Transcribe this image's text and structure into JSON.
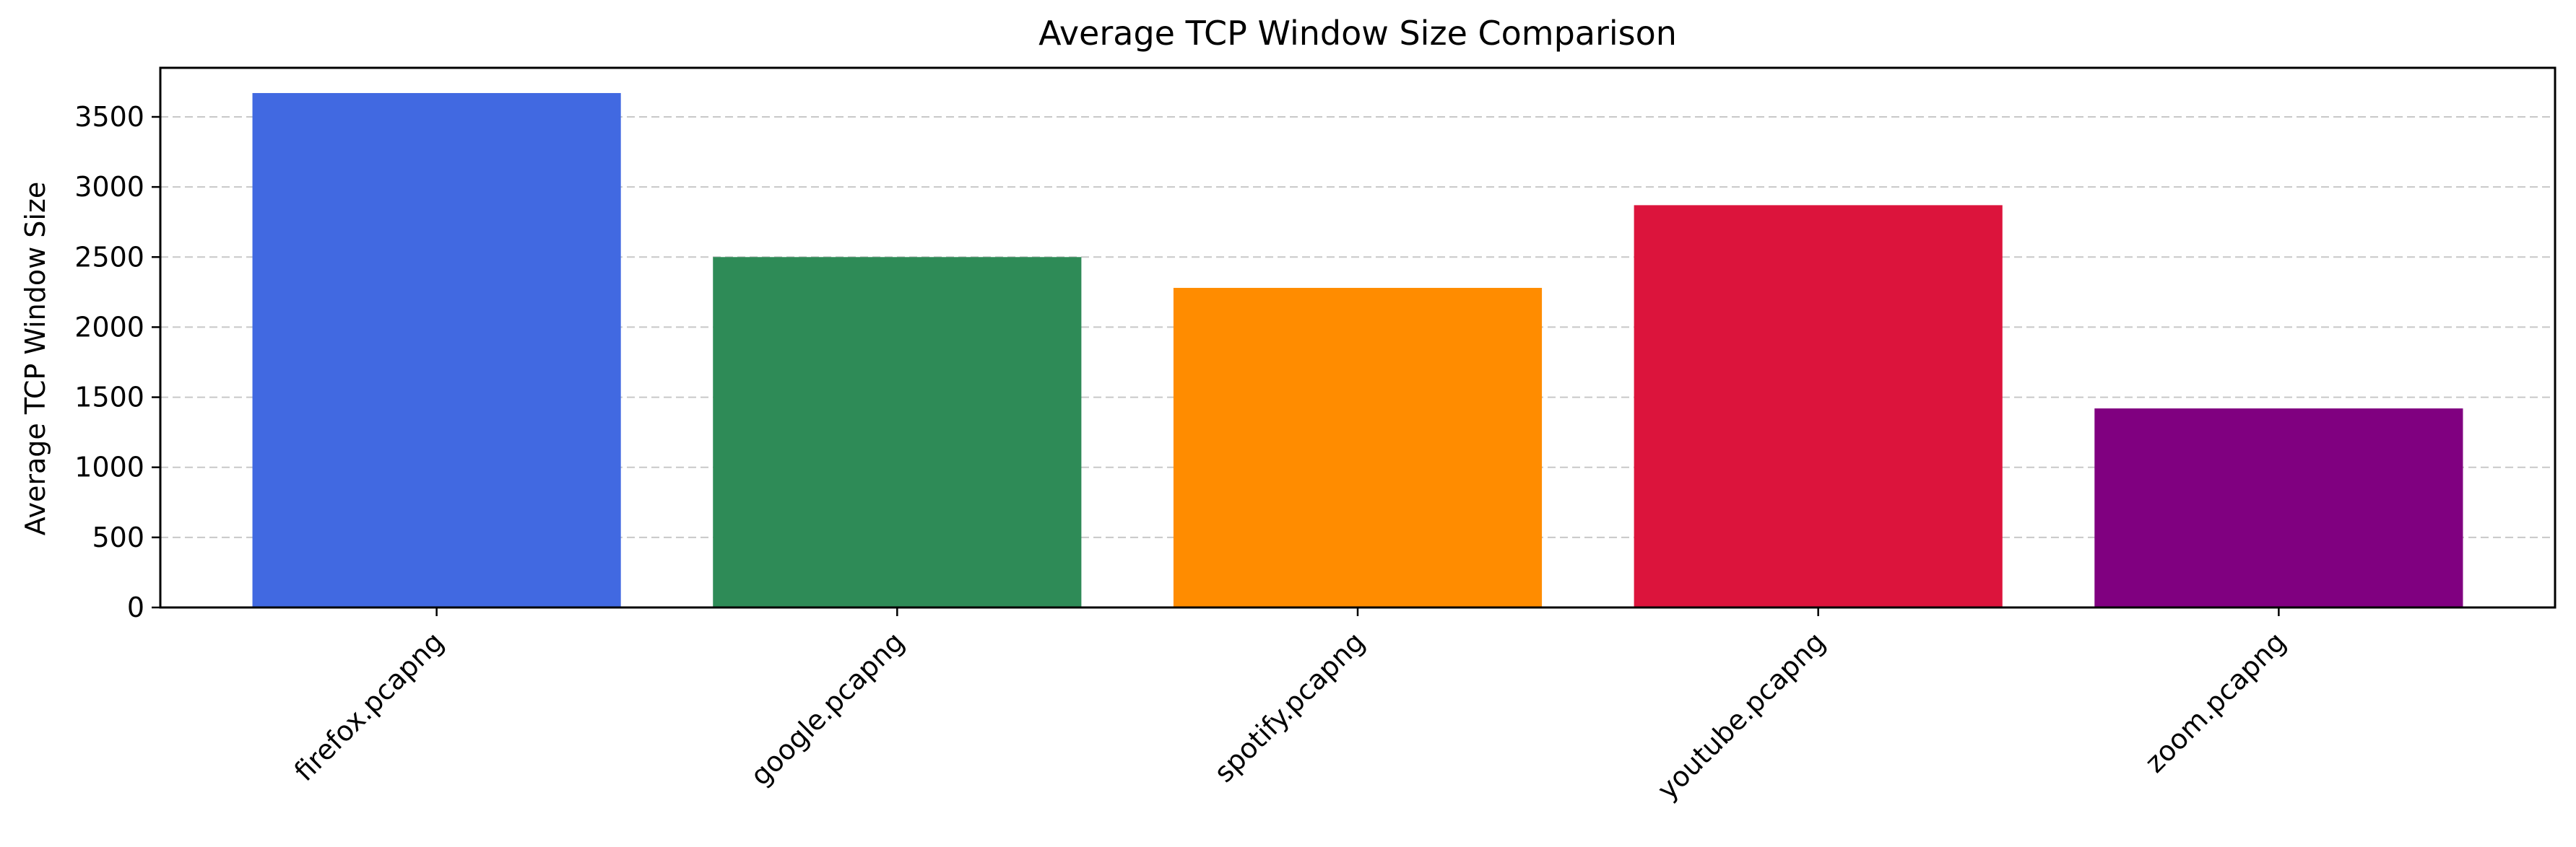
{
  "chart_data": {
    "type": "bar",
    "title": "Average TCP Window Size Comparison",
    "xlabel": "",
    "ylabel": "Average TCP Window Size",
    "categories": [
      "firefox.pcapng",
      "google.pcapng",
      "spotify.pcapng",
      "youtube.pcapng",
      "zoom.pcapng"
    ],
    "values": [
      3670,
      2500,
      2280,
      2870,
      1420
    ],
    "colors": [
      "#4169E1",
      "#2E8B57",
      "#FF8C00",
      "#DC143C",
      "#800080"
    ],
    "ylim": [
      0,
      3850
    ],
    "yticks": [
      0,
      500,
      1000,
      1500,
      2000,
      2500,
      3000,
      3500
    ],
    "grid": "y-dashed",
    "legend": "none"
  }
}
